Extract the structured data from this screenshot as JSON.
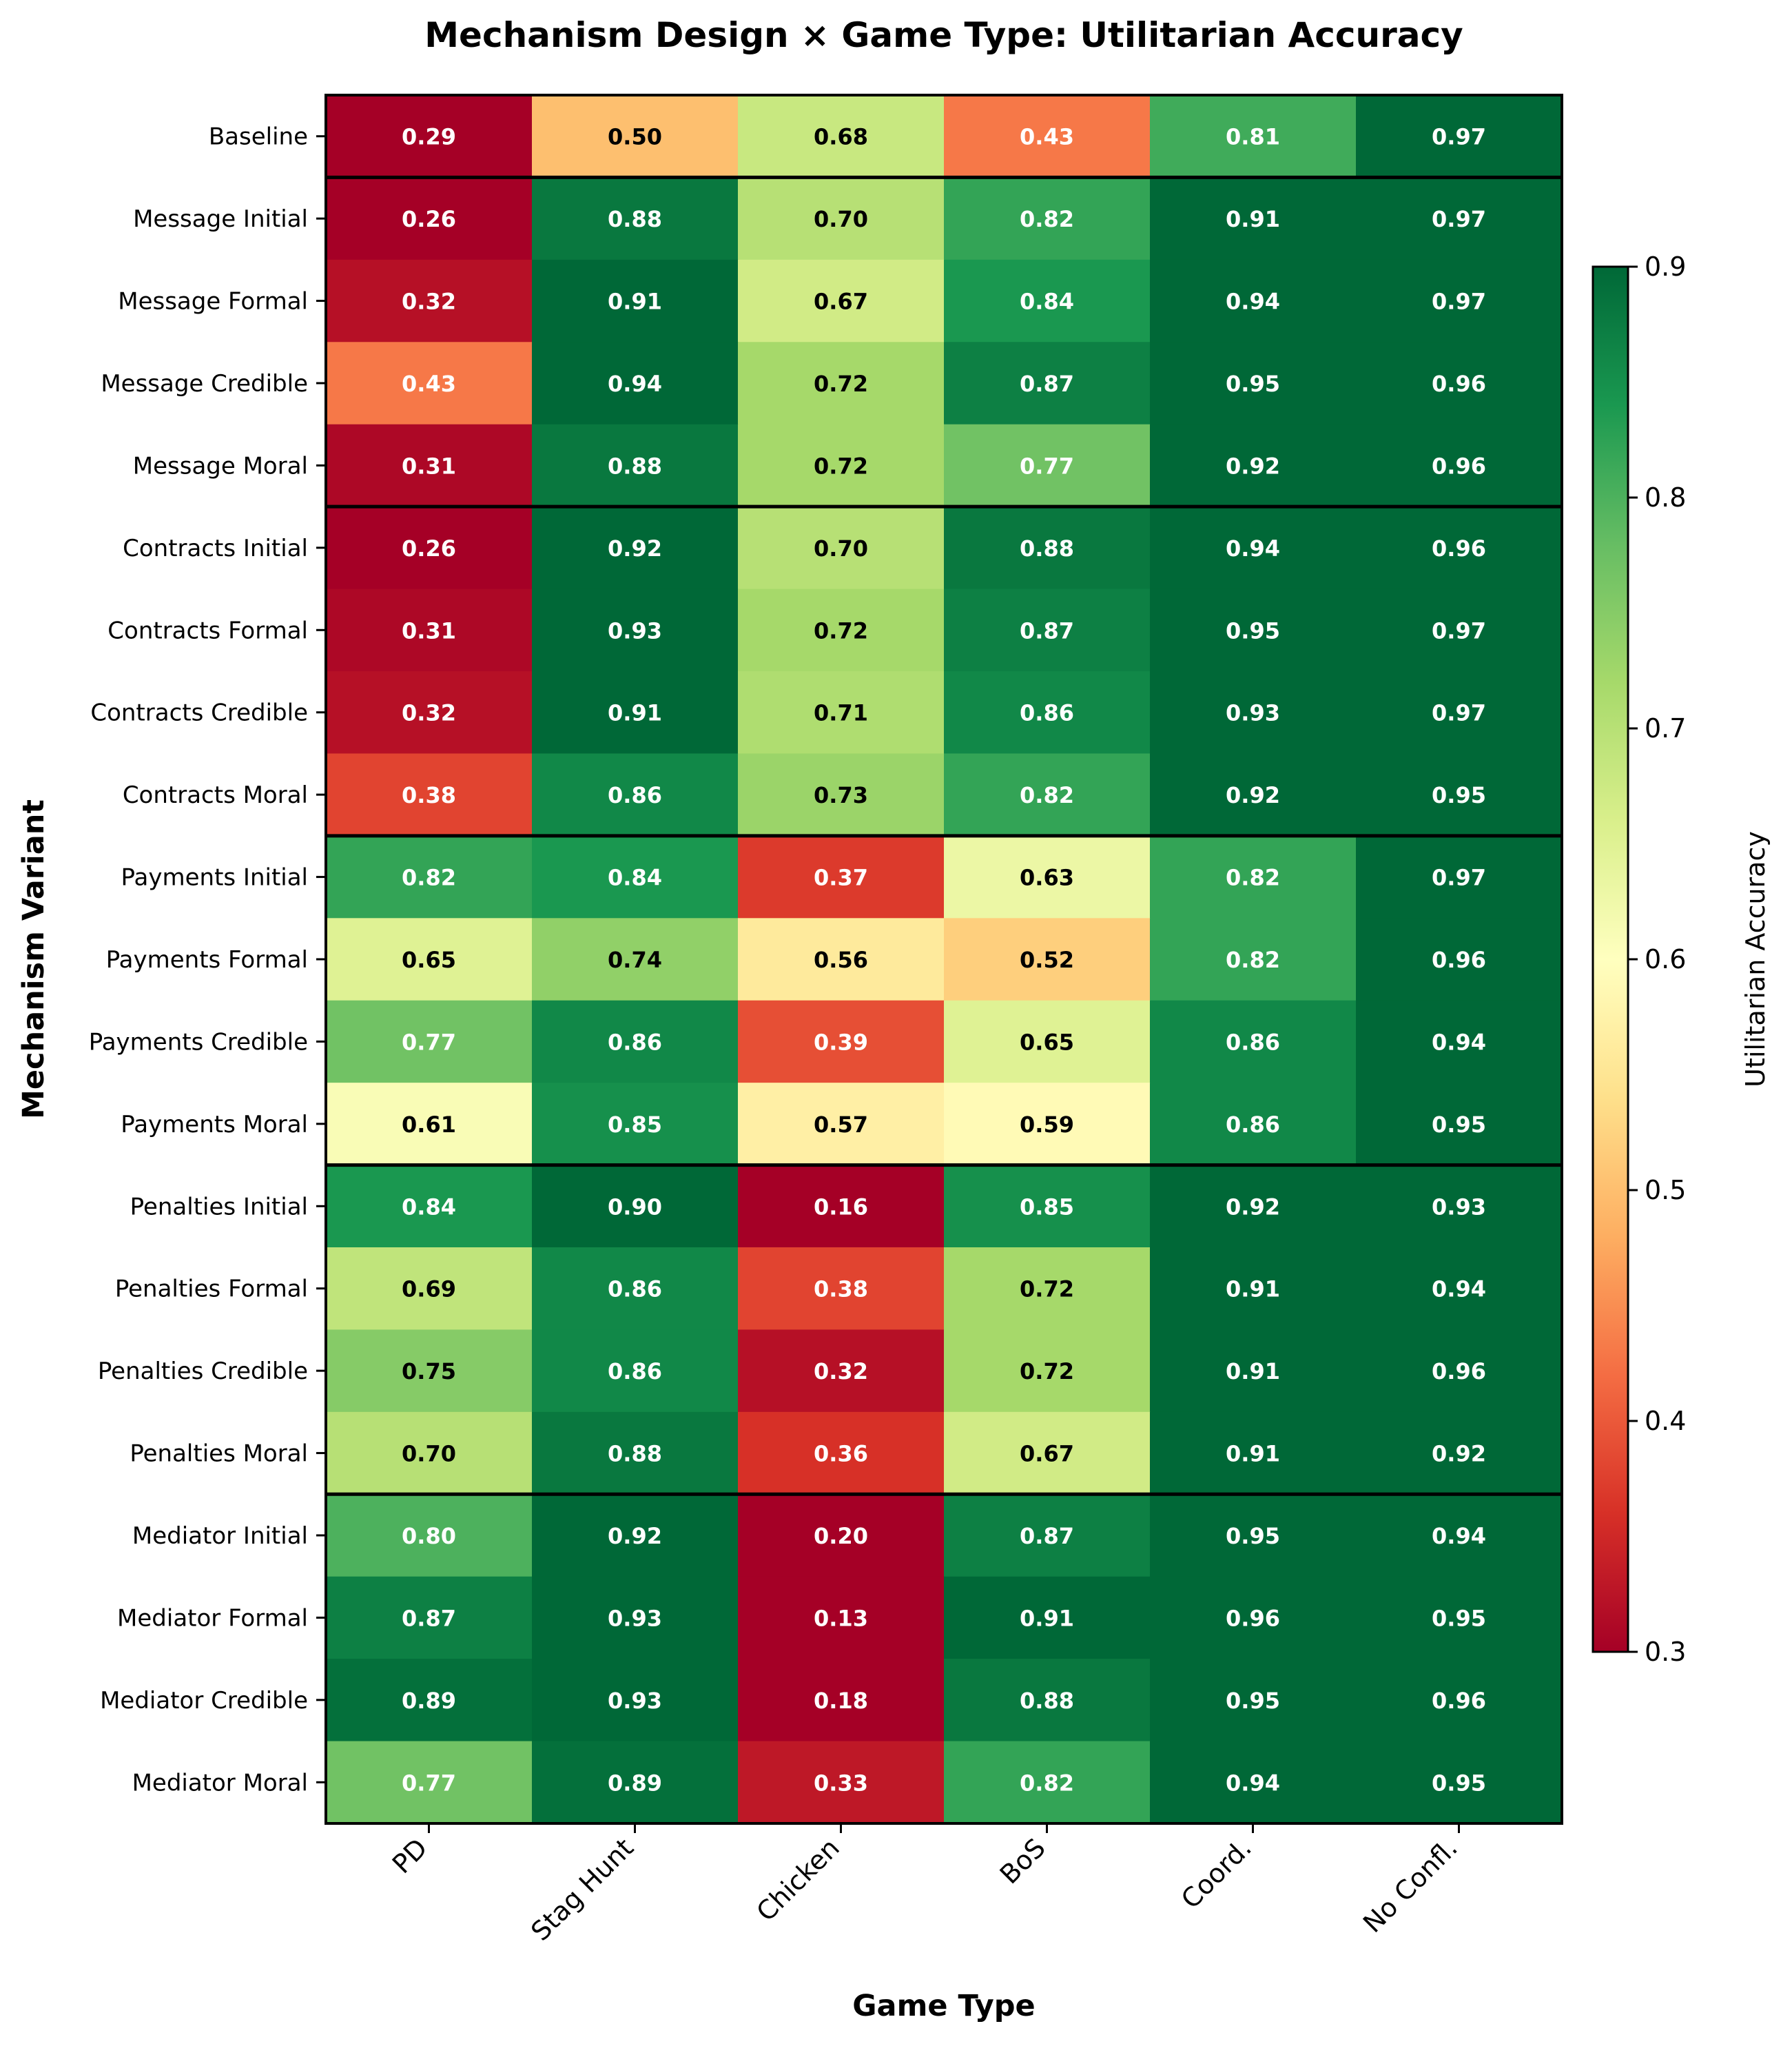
{
  "chart_data": {
    "type": "heatmap",
    "title": "Mechanism Design × Game Type: Utilitarian Accuracy",
    "xlabel": "Game Type",
    "ylabel": "Mechanism Variant",
    "colorbar_label": "Utilitarian Accuracy",
    "colorbar_ticks": [
      "0.3",
      "0.4",
      "0.5",
      "0.6",
      "0.7",
      "0.8",
      "0.9"
    ],
    "vmin": 0.3,
    "vmax": 0.9,
    "colormap": "RdYlGn",
    "columns": [
      "PD",
      "Stag Hunt",
      "Chicken",
      "BoS",
      "Coord.",
      "No Confl."
    ],
    "rows": [
      "Baseline",
      "Message Initial",
      "Message Formal",
      "Message Credible",
      "Message Moral",
      "Contracts Initial",
      "Contracts Formal",
      "Contracts Credible",
      "Contracts Moral",
      "Payments Initial",
      "Payments Formal",
      "Payments Credible",
      "Payments Moral",
      "Penalties Initial",
      "Penalties Formal",
      "Penalties Credible",
      "Penalties Moral",
      "Mediator Initial",
      "Mediator Formal",
      "Mediator Credible",
      "Mediator Moral"
    ],
    "values": [
      [
        0.29,
        0.5,
        0.68,
        0.43,
        0.81,
        0.97
      ],
      [
        0.26,
        0.88,
        0.7,
        0.82,
        0.91,
        0.97
      ],
      [
        0.32,
        0.91,
        0.67,
        0.84,
        0.94,
        0.97
      ],
      [
        0.43,
        0.94,
        0.72,
        0.87,
        0.95,
        0.96
      ],
      [
        0.31,
        0.88,
        0.72,
        0.77,
        0.92,
        0.96
      ],
      [
        0.26,
        0.92,
        0.7,
        0.88,
        0.94,
        0.96
      ],
      [
        0.31,
        0.93,
        0.72,
        0.87,
        0.95,
        0.97
      ],
      [
        0.32,
        0.91,
        0.71,
        0.86,
        0.93,
        0.97
      ],
      [
        0.38,
        0.86,
        0.73,
        0.82,
        0.92,
        0.95
      ],
      [
        0.82,
        0.84,
        0.37,
        0.63,
        0.82,
        0.97
      ],
      [
        0.65,
        0.74,
        0.56,
        0.52,
        0.82,
        0.96
      ],
      [
        0.77,
        0.86,
        0.39,
        0.65,
        0.86,
        0.94
      ],
      [
        0.61,
        0.85,
        0.57,
        0.59,
        0.86,
        0.95
      ],
      [
        0.84,
        0.9,
        0.16,
        0.85,
        0.92,
        0.93
      ],
      [
        0.69,
        0.86,
        0.38,
        0.72,
        0.91,
        0.94
      ],
      [
        0.75,
        0.86,
        0.32,
        0.72,
        0.91,
        0.96
      ],
      [
        0.7,
        0.88,
        0.36,
        0.67,
        0.91,
        0.92
      ],
      [
        0.8,
        0.92,
        0.2,
        0.87,
        0.95,
        0.94
      ],
      [
        0.87,
        0.93,
        0.13,
        0.91,
        0.96,
        0.95
      ],
      [
        0.89,
        0.93,
        0.18,
        0.88,
        0.95,
        0.96
      ],
      [
        0.77,
        0.89,
        0.33,
        0.82,
        0.94,
        0.95
      ]
    ],
    "group_separators_after_rows": [
      0,
      4,
      8,
      12,
      16
    ]
  }
}
